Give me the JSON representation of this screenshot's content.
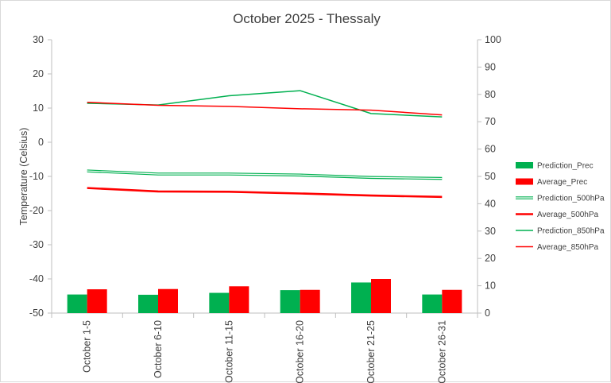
{
  "chart_data": {
    "type": "bar",
    "title": "October 2025 - Thessaly",
    "ylabel": "Temperature (Celsius)",
    "y2label": "",
    "xlabel": "",
    "ylim": [
      -50,
      30
    ],
    "y_ticks": [
      30,
      20,
      10,
      0,
      -10,
      -20,
      -30,
      -40,
      -50
    ],
    "y2lim": [
      0,
      100
    ],
    "y2_ticks": [
      100,
      90,
      80,
      70,
      60,
      50,
      40,
      30,
      20,
      10,
      0
    ],
    "grid": false,
    "legend_position": "right",
    "categories": [
      "October 1-5",
      "October 6-10",
      "October 11-15",
      "October 16-20",
      "October 21-25",
      "October 26-31"
    ],
    "series": [
      {
        "name": "Prediction_Prec",
        "type": "bar",
        "axis": "right",
        "color": "#00b050",
        "values": [
          6.8,
          6.7,
          7.4,
          8.4,
          11.2,
          6.8
        ]
      },
      {
        "name": "Average_Prec",
        "type": "bar",
        "axis": "right",
        "color": "#ff0000",
        "values": [
          8.7,
          8.8,
          9.8,
          8.5,
          12.5,
          8.5
        ]
      },
      {
        "name": "Prediction_500hPa",
        "type": "line",
        "style": "double",
        "axis": "left",
        "color": "#00b050",
        "values": [
          -8.4,
          -9.3,
          -9.3,
          -9.6,
          -10.3,
          -10.6
        ]
      },
      {
        "name": "Average_500hPa",
        "type": "line",
        "style": "thick",
        "axis": "left",
        "color": "#ff0000",
        "values": [
          -13.4,
          -14.4,
          -14.5,
          -15.0,
          -15.6,
          -16.0
        ]
      },
      {
        "name": "Prediction_850hPa",
        "type": "line",
        "style": "thin",
        "axis": "left",
        "color": "#00b050",
        "values": [
          11.4,
          10.9,
          13.6,
          15.1,
          8.4,
          7.4
        ]
      },
      {
        "name": "Average_850hPa",
        "type": "line",
        "style": "thin",
        "axis": "left",
        "color": "#ff0000",
        "values": [
          11.7,
          10.8,
          10.5,
          9.8,
          9.4,
          8.0
        ]
      }
    ]
  }
}
